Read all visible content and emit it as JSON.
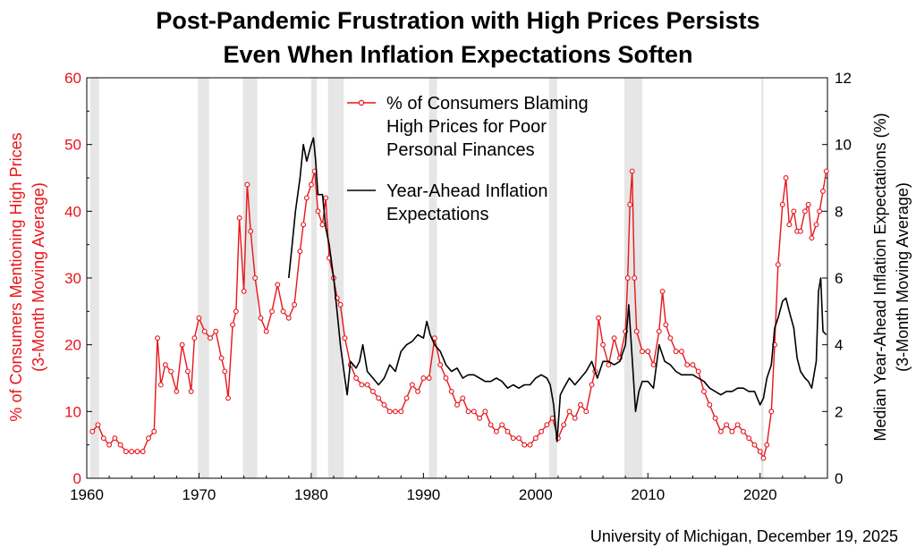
{
  "chart_data": {
    "type": "line",
    "title_lines": [
      "Post-Pandemic Frustration with High Prices Persists",
      "Even When Inflation Expectations Soften"
    ],
    "ylabel_left_lines": [
      "% of Consumers Mentioning High Prices",
      "(3-Month Moving Average)"
    ],
    "ylabel_right_lines": [
      "Median Year-Ahead Inflation Expectations (%)",
      "(3-Month Moving Average)"
    ],
    "xlim": [
      1960,
      2026
    ],
    "ylim_left": [
      0,
      60
    ],
    "ylim_right": [
      0,
      12
    ],
    "x_ticks": [
      "1960",
      "1970",
      "1980",
      "1990",
      "2000",
      "2010",
      "2020"
    ],
    "y_ticks_left": [
      "0",
      "10",
      "20",
      "30",
      "40",
      "50",
      "60"
    ],
    "y_ticks_right": [
      "0",
      "2",
      "4",
      "6",
      "8",
      "10",
      "12"
    ],
    "recessions": [
      [
        1960.3,
        1961.1
      ],
      [
        1969.9,
        1970.9
      ],
      [
        1973.9,
        1975.2
      ],
      [
        1980.0,
        1980.5
      ],
      [
        1981.5,
        1982.9
      ],
      [
        1990.5,
        1991.2
      ],
      [
        2001.2,
        2001.9
      ],
      [
        2007.9,
        2009.5
      ],
      [
        2020.1,
        2020.3
      ]
    ],
    "legend_position": "top-center",
    "series": [
      {
        "name_lines": [
          "% of Consumers Blaming",
          "High Prices for Poor",
          "Personal Finances"
        ],
        "color": "#e8151b",
        "axis": "left",
        "marker": "open-circle",
        "x": [
          1960.5,
          1961,
          1961.5,
          1962,
          1962.5,
          1963,
          1963.5,
          1964,
          1964.5,
          1965,
          1965.5,
          1966,
          1966.3,
          1966.6,
          1967,
          1967.5,
          1968,
          1968.5,
          1969,
          1969.3,
          1969.6,
          1970,
          1970.5,
          1971,
          1971.5,
          1972,
          1972.3,
          1972.6,
          1973,
          1973.3,
          1973.6,
          1974,
          1974.3,
          1974.6,
          1975,
          1975.5,
          1976,
          1976.5,
          1977,
          1977.5,
          1978,
          1978.5,
          1979,
          1979.3,
          1979.6,
          1980,
          1980.3,
          1980.6,
          1981,
          1981.3,
          1981.6,
          1982,
          1982.3,
          1982.6,
          1983,
          1983.5,
          1984,
          1984.5,
          1985,
          1985.5,
          1986,
          1986.5,
          1987,
          1987.5,
          1988,
          1988.5,
          1989,
          1989.5,
          1990,
          1990.5,
          1991,
          1991.5,
          1992,
          1992.5,
          1993,
          1993.5,
          1994,
          1994.5,
          1995,
          1995.5,
          1996,
          1996.5,
          1997,
          1997.5,
          1998,
          1998.5,
          1999,
          1999.5,
          2000,
          2000.5,
          2001,
          2001.5,
          2002,
          2002.5,
          2003,
          2003.5,
          2004,
          2004.5,
          2005,
          2005.3,
          2005.6,
          2006,
          2006.5,
          2007,
          2007.5,
          2008,
          2008.2,
          2008.4,
          2008.6,
          2008.8,
          2009,
          2009.5,
          2010,
          2010.5,
          2011,
          2011.3,
          2011.6,
          2012,
          2012.5,
          2013,
          2013.5,
          2014,
          2014.5,
          2015,
          2015.5,
          2016,
          2016.5,
          2017,
          2017.5,
          2018,
          2018.5,
          2019,
          2019.5,
          2020,
          2020.3,
          2020.6,
          2021,
          2021.3,
          2021.6,
          2022,
          2022.3,
          2022.6,
          2023,
          2023.3,
          2023.6,
          2024,
          2024.3,
          2024.6,
          2025,
          2025.3,
          2025.6,
          2025.9
        ],
        "y": [
          7,
          8,
          6,
          5,
          6,
          5,
          4,
          4,
          4,
          4,
          6,
          7,
          21,
          14,
          17,
          16,
          13,
          20,
          16,
          13,
          21,
          24,
          22,
          21,
          22,
          18,
          16,
          12,
          23,
          25,
          39,
          28,
          44,
          37,
          30,
          24,
          22,
          25,
          29,
          25,
          24,
          26,
          34,
          38,
          42,
          44,
          46,
          40,
          38,
          42,
          33,
          30,
          27,
          26,
          21,
          17,
          15,
          14,
          14,
          13,
          12,
          11,
          10,
          10,
          10,
          12,
          14,
          13,
          15,
          15,
          21,
          17,
          15,
          13,
          11,
          12,
          10,
          10,
          9,
          10,
          8,
          7,
          8,
          7,
          6,
          6,
          5,
          5,
          6,
          7,
          8,
          9,
          6,
          8,
          10,
          9,
          11,
          10,
          14,
          16,
          24,
          20,
          17,
          21,
          18,
          22,
          30,
          41,
          46,
          30,
          22,
          19,
          19,
          17,
          22,
          28,
          23,
          21,
          19,
          19,
          17,
          17,
          16,
          13,
          11,
          9,
          7,
          8,
          7,
          8,
          7,
          6,
          5,
          4,
          3,
          5,
          10,
          20,
          32,
          41,
          45,
          38,
          40,
          37,
          37,
          40,
          41,
          36,
          38,
          40,
          43,
          46
        ]
      },
      {
        "name_lines": [
          "Year-Ahead Inflation",
          "Expectations"
        ],
        "color": "#000000",
        "axis": "right",
        "marker": "none",
        "x": [
          1978,
          1978.3,
          1978.6,
          1979,
          1979.3,
          1979.6,
          1980,
          1980.2,
          1980.4,
          1980.6,
          1981,
          1981.3,
          1981.6,
          1982,
          1982.3,
          1982.6,
          1983,
          1983.2,
          1983.5,
          1984,
          1984.3,
          1984.6,
          1985,
          1985.5,
          1986,
          1986.5,
          1987,
          1987.5,
          1988,
          1988.5,
          1989,
          1989.5,
          1990,
          1990.3,
          1990.6,
          1991,
          1991.5,
          1992,
          1992.5,
          1993,
          1993.5,
          1994,
          1994.5,
          1995,
          1995.5,
          1996,
          1996.5,
          1997,
          1997.5,
          1998,
          1998.5,
          1999,
          1999.5,
          2000,
          2000.5,
          2001,
          2001.3,
          2001.6,
          2001.9,
          2002.2,
          2002.5,
          2003,
          2003.5,
          2004,
          2004.5,
          2005,
          2005.5,
          2006,
          2006.5,
          2007,
          2007.5,
          2008,
          2008.3,
          2008.6,
          2008.9,
          2009.2,
          2009.5,
          2010,
          2010.5,
          2011,
          2011.5,
          2012,
          2012.5,
          2013,
          2013.5,
          2014,
          2014.5,
          2015,
          2015.5,
          2016,
          2016.5,
          2017,
          2017.5,
          2018,
          2018.5,
          2019,
          2019.5,
          2020,
          2020.3,
          2020.6,
          2021,
          2021.3,
          2021.6,
          2022,
          2022.3,
          2022.6,
          2023,
          2023.3,
          2023.6,
          2024,
          2024.3,
          2024.6,
          2025,
          2025.2,
          2025.4,
          2025.6,
          2025.9
        ],
        "y": [
          6,
          7,
          8,
          9,
          10,
          9.5,
          10,
          10.2,
          9.5,
          8.5,
          8.5,
          7.5,
          7,
          6,
          5,
          4,
          3,
          2.5,
          3.5,
          3.3,
          3.5,
          4,
          3.2,
          3,
          2.8,
          3,
          3.4,
          3.2,
          3.8,
          4.0,
          4.1,
          4.3,
          4.2,
          4.7,
          4.3,
          4.0,
          3.8,
          3.4,
          3.2,
          3.3,
          3.0,
          3.1,
          3.1,
          3.0,
          2.9,
          2.9,
          3.0,
          2.9,
          2.7,
          2.8,
          2.7,
          2.8,
          2.8,
          3.0,
          3.1,
          3.0,
          2.8,
          2.2,
          1.1,
          2.5,
          2.7,
          3.0,
          2.8,
          3.0,
          3.2,
          3.5,
          3.0,
          3.5,
          3.5,
          3.4,
          3.5,
          4.0,
          5.2,
          3.6,
          2.0,
          2.6,
          2.9,
          2.9,
          2.7,
          4.0,
          3.5,
          3.4,
          3.2,
          3.1,
          3.1,
          3.1,
          3.0,
          2.9,
          2.7,
          2.6,
          2.5,
          2.6,
          2.6,
          2.7,
          2.7,
          2.6,
          2.6,
          2.2,
          2.4,
          3.0,
          3.4,
          4.5,
          4.8,
          5.3,
          5.4,
          5.0,
          4.5,
          3.6,
          3.2,
          3.0,
          2.9,
          2.7,
          3.5,
          5.6,
          6.0,
          4.4,
          4.3
        ]
      }
    ]
  },
  "source": "University of Michigan, December 19, 2025"
}
